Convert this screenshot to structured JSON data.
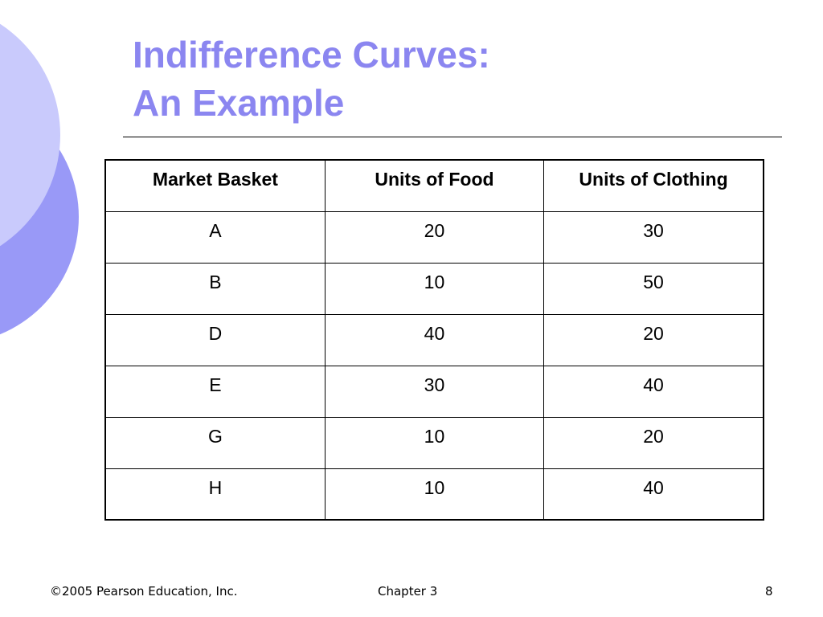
{
  "slide": {
    "title_line1": "Indifference Curves:",
    "title_line2": "An Example"
  },
  "table": {
    "headers": [
      "Market Basket",
      "Units of Food",
      "Units of Clothing"
    ],
    "rows": [
      [
        "A",
        "20",
        "30"
      ],
      [
        "B",
        "10",
        "50"
      ],
      [
        "D",
        "40",
        "20"
      ],
      [
        "E",
        "30",
        "40"
      ],
      [
        "G",
        "10",
        "20"
      ],
      [
        "H",
        "10",
        "40"
      ]
    ]
  },
  "footer": {
    "copyright": "©2005 Pearson Education, Inc.",
    "chapter": "Chapter 3",
    "page_number": "8"
  },
  "colors": {
    "title": "#8b86f0",
    "circle_light": "#c9cafc",
    "circle_dark": "#9999f7"
  }
}
